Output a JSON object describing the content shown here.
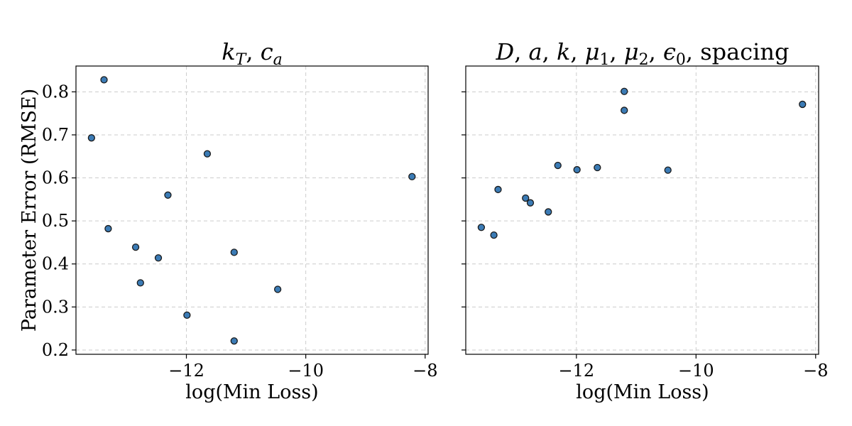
{
  "chart_data": [
    {
      "type": "scatter",
      "title": "k_T, c_a",
      "xlabel": "log(Min Loss)",
      "ylabel": "Parameter Error (RMSE)",
      "xlim": [
        -13.85,
        -7.95
      ],
      "ylim": [
        0.19,
        0.86
      ],
      "xticks": [
        -12,
        -10,
        -8
      ],
      "xtick_labels": [
        "−12",
        "−10",
        "−8"
      ],
      "yticks": [
        0.2,
        0.3,
        0.4,
        0.5,
        0.6,
        0.7,
        0.8
      ],
      "ytick_labels": [
        "0.2",
        "0.3",
        "0.4",
        "0.5",
        "0.6",
        "0.7",
        "0.8"
      ],
      "grid": true,
      "marker_color": "#3b7bb5",
      "points": [
        {
          "x": -13.59,
          "y": 0.693
        },
        {
          "x": -13.38,
          "y": 0.828
        },
        {
          "x": -13.31,
          "y": 0.482
        },
        {
          "x": -12.85,
          "y": 0.439
        },
        {
          "x": -12.77,
          "y": 0.356
        },
        {
          "x": -12.47,
          "y": 0.414
        },
        {
          "x": -12.31,
          "y": 0.56
        },
        {
          "x": -11.99,
          "y": 0.281
        },
        {
          "x": -11.65,
          "y": 0.656
        },
        {
          "x": -11.2,
          "y": 0.427
        },
        {
          "x": -11.2,
          "y": 0.221
        },
        {
          "x": -10.47,
          "y": 0.341
        },
        {
          "x": -8.22,
          "y": 0.603
        }
      ]
    },
    {
      "type": "scatter",
      "title": "D, a, k, μ1, μ2, ε0, spacing",
      "xlabel": "log(Min Loss)",
      "ylabel": "",
      "xlim": [
        -13.85,
        -7.95
      ],
      "ylim": [
        0.19,
        0.86
      ],
      "xticks": [
        -12,
        -10,
        -8
      ],
      "xtick_labels": [
        "−12",
        "−10",
        "−8"
      ],
      "yticks": [
        0.2,
        0.3,
        0.4,
        0.5,
        0.6,
        0.7,
        0.8
      ],
      "ytick_labels": [],
      "grid": true,
      "marker_color": "#3b7bb5",
      "points": [
        {
          "x": -13.59,
          "y": 0.485
        },
        {
          "x": -13.38,
          "y": 0.467
        },
        {
          "x": -13.31,
          "y": 0.573
        },
        {
          "x": -12.85,
          "y": 0.553
        },
        {
          "x": -12.77,
          "y": 0.542
        },
        {
          "x": -12.47,
          "y": 0.521
        },
        {
          "x": -12.31,
          "y": 0.629
        },
        {
          "x": -11.99,
          "y": 0.619
        },
        {
          "x": -11.65,
          "y": 0.624
        },
        {
          "x": -11.2,
          "y": 0.801
        },
        {
          "x": -11.2,
          "y": 0.757
        },
        {
          "x": -10.47,
          "y": 0.618
        },
        {
          "x": -8.22,
          "y": 0.771
        }
      ]
    }
  ]
}
